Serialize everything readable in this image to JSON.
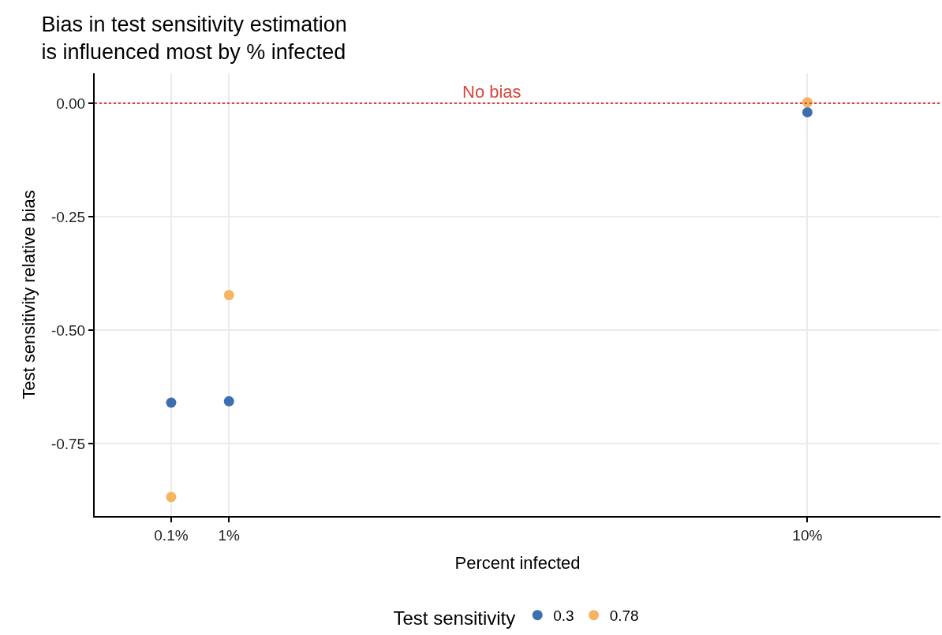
{
  "chart_data": {
    "type": "scatter",
    "title": "Bias in test sensitivity estimation\nis influenced most by % infected",
    "xlabel": "Percent infected",
    "ylabel": "Test sensitivity relative bias",
    "legend_title": "Test sensitivity",
    "x": [
      0.1,
      1,
      10
    ],
    "series": [
      {
        "name": "0.3",
        "color": "#3b6fb0",
        "values": [
          -0.66,
          -0.657,
          -0.02
        ]
      },
      {
        "name": "0.78",
        "color": "#f5b461",
        "values": [
          -0.868,
          -0.423,
          0.002
        ]
      }
    ],
    "xlim": [
      -1.09,
      12.07
    ],
    "xticks": [
      {
        "value": 0.1,
        "label": "0.1%"
      },
      {
        "value": 1,
        "label": "1%"
      },
      {
        "value": 10,
        "label": "10%"
      }
    ],
    "ylim": [
      -0.91,
      0.066
    ],
    "yticks": [
      {
        "value": 0,
        "label": "0.00"
      },
      {
        "value": -0.25,
        "label": "-0.25"
      },
      {
        "value": -0.5,
        "label": "-0.50"
      },
      {
        "value": -0.75,
        "label": "-0.75"
      }
    ],
    "ref_lines": [
      {
        "axis": "y",
        "value": 0,
        "label": "No bias",
        "color": "#d9473b",
        "line_style": "dotted"
      }
    ],
    "grid": true,
    "legend": "bottom",
    "marker": "circle"
  }
}
